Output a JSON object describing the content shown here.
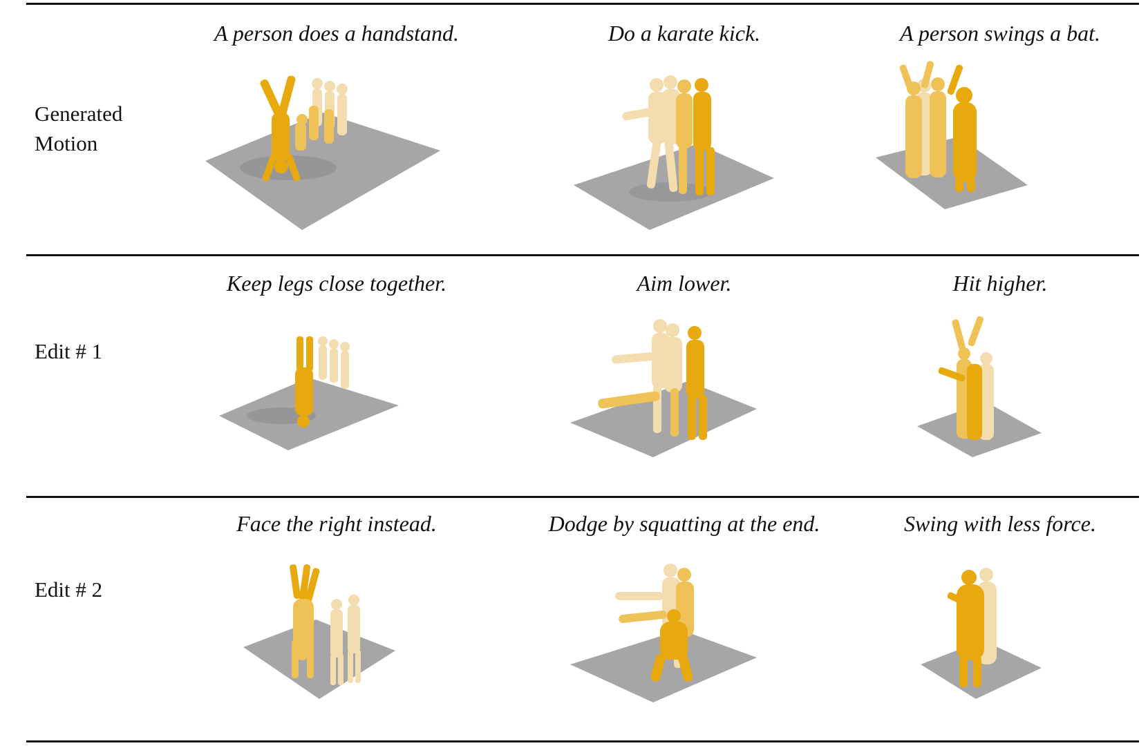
{
  "rows": [
    {
      "label_lines": [
        "Generated",
        "Motion"
      ],
      "captions": [
        "A person does a handstand.",
        "Do a karate kick.",
        "A person swings a bat."
      ]
    },
    {
      "label_lines": [
        "Edit # 1"
      ],
      "captions": [
        "Keep legs close together.",
        "Aim lower.",
        "Hit higher."
      ]
    },
    {
      "label_lines": [
        "Edit # 2"
      ],
      "captions": [
        "Face the right instead.",
        "Dodge by squatting at the end.",
        "Swing with less force."
      ]
    }
  ],
  "colors": {
    "floor": "#a6a6a6",
    "shadow": "#8c8c8c",
    "figure_dark": "#e8a90f",
    "figure_mid": "#efc257",
    "figure_light": "#f3dcae"
  },
  "icons": [
    "motion-render-image"
  ]
}
